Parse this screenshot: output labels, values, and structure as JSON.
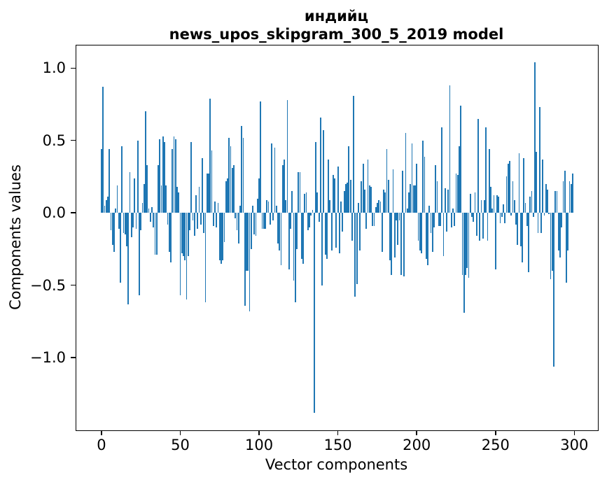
{
  "chart_data": {
    "type": "bar",
    "title": "индийц",
    "subtitle": "news_upos_skipgram_300_5_2019 model",
    "xlabel": "Vector components",
    "ylabel": "Components values",
    "bar_color": "#1f77b4",
    "n_components": 300,
    "xlim": [
      -15.95,
      314.95
    ],
    "ylim": [
      -1.502,
      1.156
    ],
    "bar_width_units": 0.8,
    "grid": false,
    "xticks": {
      "positions": [
        0,
        50,
        100,
        150,
        200,
        250,
        300
      ],
      "labels": [
        "0",
        "50",
        "100",
        "150",
        "200",
        "250",
        "300"
      ]
    },
    "yticks": {
      "positions": [
        1.0,
        0.5,
        0.0,
        -0.5,
        -1.0
      ],
      "labels": [
        "1.0",
        "0.5",
        "0.0",
        "−0.5",
        "−1.0"
      ]
    },
    "values": [
      0.44,
      0.87,
      0.05,
      0.09,
      0.11,
      0.44,
      -0.12,
      -0.22,
      -0.27,
      0.03,
      0.19,
      -0.11,
      -0.48,
      0.46,
      -0.14,
      -0.15,
      -0.23,
      -0.63,
      0.28,
      -0.17,
      -0.1,
      0.24,
      -0.11,
      0.5,
      -0.57,
      -0.12,
      0.07,
      0.2,
      0.7,
      0.33,
      0.03,
      -0.06,
      0.04,
      -0.1,
      -0.29,
      -0.29,
      0.33,
      0.51,
      0.19,
      0.53,
      0.49,
      0.19,
      -0.08,
      -0.27,
      -0.34,
      0.44,
      0.53,
      0.51,
      0.18,
      0.14,
      -0.57,
      -0.28,
      -0.3,
      -0.33,
      -0.6,
      -0.3,
      -0.12,
      0.49,
      -0.05,
      -0.16,
      0.12,
      -0.11,
      0.18,
      -0.08,
      0.38,
      -0.14,
      -0.62,
      0.27,
      0.27,
      0.79,
      0.43,
      -0.09,
      0.08,
      -0.1,
      0.07,
      -0.33,
      -0.35,
      -0.33,
      -0.2,
      0.22,
      0.24,
      0.52,
      0.46,
      0.31,
      0.33,
      -0.04,
      -0.12,
      -0.21,
      0.05,
      0.6,
      0.52,
      -0.64,
      -0.4,
      -0.4,
      -0.68,
      -0.25,
      0.05,
      -0.15,
      -0.16,
      0.1,
      0.24,
      0.77,
      -0.11,
      -0.11,
      -0.11,
      0.09,
      0.08,
      -0.08,
      0.48,
      -0.05,
      0.45,
      0.05,
      -0.21,
      -0.26,
      -0.36,
      0.33,
      0.37,
      0.09,
      0.78,
      -0.39,
      -0.11,
      0.15,
      -0.47,
      -0.62,
      -0.25,
      0.28,
      0.28,
      -0.32,
      -0.35,
      0.13,
      0.14,
      -0.12,
      -0.1,
      -0.02,
      0.02,
      -1.38,
      0.49,
      0.14,
      -0.06,
      0.66,
      -0.5,
      0.57,
      -0.29,
      -0.32,
      0.37,
      0.09,
      -0.26,
      0.26,
      0.24,
      -0.24,
      0.32,
      -0.28,
      0.08,
      -0.13,
      0.15,
      0.2,
      0.21,
      0.46,
      0.23,
      -0.19,
      0.81,
      -0.58,
      -0.49,
      0.07,
      -0.26,
      0.22,
      0.34,
      0.16,
      -0.11,
      0.37,
      0.19,
      0.18,
      -0.09,
      -0.09,
      0.04,
      0.07,
      0.09,
      0.08,
      -0.27,
      0.16,
      0.14,
      0.44,
      0.23,
      -0.33,
      -0.43,
      0.3,
      -0.31,
      -0.05,
      -0.22,
      -0.05,
      -0.43,
      0.29,
      -0.44,
      0.55,
      0.03,
      0.14,
      0.2,
      0.48,
      0.19,
      0.19,
      0.34,
      -0.19,
      -0.26,
      -0.28,
      0.5,
      0.39,
      -0.32,
      -0.36,
      0.05,
      -0.14,
      -0.27,
      -0.1,
      0.33,
      0.22,
      -0.09,
      -0.09,
      0.59,
      -0.3,
      0.17,
      -0.13,
      0.16,
      0.88,
      -0.1,
      0.03,
      -0.09,
      0.27,
      0.26,
      0.46,
      0.74,
      -0.43,
      -0.69,
      -0.43,
      -0.38,
      -0.45,
      0.13,
      -0.03,
      -0.06,
      0.14,
      -0.16,
      0.65,
      -0.19,
      0.09,
      -0.18,
      0.09,
      0.59,
      -0.19,
      0.44,
      0.18,
      0.03,
      0.12,
      -0.39,
      0.12,
      0.11,
      -0.07,
      -0.03,
      0.06,
      -0.07,
      0.25,
      0.34,
      0.36,
      -0.02,
      0.22,
      0.09,
      -0.08,
      -0.22,
      0.41,
      -0.23,
      -0.34,
      0.38,
      0.07,
      -0.09,
      -0.41,
      0.11,
      0.15,
      -0.03,
      1.04,
      0.42,
      -0.14,
      0.73,
      -0.14,
      0.37,
      -0.02,
      0.2,
      0.16,
      -0.01,
      -0.46,
      -0.4,
      -1.06,
      0.15,
      0.15,
      -0.26,
      -0.31,
      -0.1,
      0.22,
      0.29,
      -0.48,
      -0.26,
      0.22,
      0.2,
      0.27
    ]
  }
}
